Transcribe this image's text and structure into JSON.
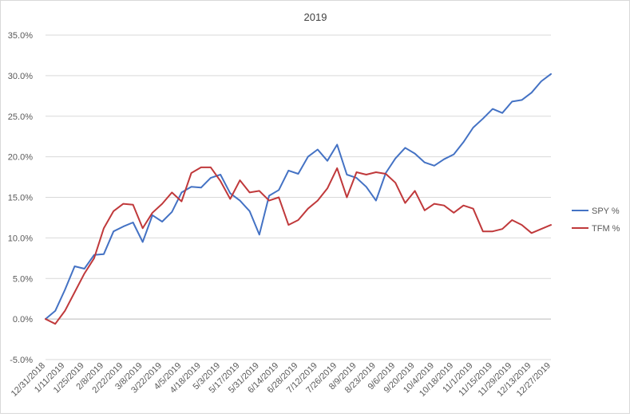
{
  "chart_data": {
    "type": "line",
    "title": "2019",
    "xlabel": "",
    "ylabel": "",
    "ylim": [
      -5.0,
      35.0
    ],
    "yticks": [
      "-5.0%",
      "0.0%",
      "5.0%",
      "10.0%",
      "15.0%",
      "20.0%",
      "25.0%",
      "30.0%",
      "35.0%"
    ],
    "ytick_values": [
      -5,
      0,
      5,
      10,
      15,
      20,
      25,
      30,
      35
    ],
    "grid": true,
    "legend_position": "right",
    "x": [
      "12/31/2018",
      "1/4/2019",
      "1/11/2019",
      "1/18/2019",
      "1/25/2019",
      "2/1/2019",
      "2/8/2019",
      "2/15/2019",
      "2/22/2019",
      "3/1/2019",
      "3/8/2019",
      "3/15/2019",
      "3/22/2019",
      "3/29/2019",
      "4/5/2019",
      "4/12/2019",
      "4/18/2019",
      "4/26/2019",
      "5/3/2019",
      "5/10/2019",
      "5/17/2019",
      "5/24/2019",
      "5/31/2019",
      "6/7/2019",
      "6/14/2019",
      "6/21/2019",
      "6/28/2019",
      "7/5/2019",
      "7/12/2019",
      "7/19/2019",
      "7/26/2019",
      "8/2/2019",
      "8/9/2019",
      "8/16/2019",
      "8/23/2019",
      "8/30/2019",
      "9/6/2019",
      "9/13/2019",
      "9/20/2019",
      "9/27/2019",
      "10/4/2019",
      "10/11/2019",
      "10/18/2019",
      "10/25/2019",
      "11/1/2019",
      "11/8/2019",
      "11/15/2019",
      "11/22/2019",
      "11/29/2019",
      "12/6/2019",
      "12/13/2019",
      "12/20/2019",
      "12/27/2019"
    ],
    "xtick_labels": [
      "12/31/2018",
      "1/11/2019",
      "1/25/2019",
      "2/8/2019",
      "2/22/2019",
      "3/8/2019",
      "3/22/2019",
      "4/5/2019",
      "4/18/2019",
      "5/3/2019",
      "5/17/2019",
      "5/31/2019",
      "6/14/2019",
      "6/28/2019",
      "7/12/2019",
      "7/26/2019",
      "8/9/2019",
      "8/23/2019",
      "9/6/2019",
      "9/20/2019",
      "10/4/2019",
      "10/18/2019",
      "11/1/2019",
      "11/15/2019",
      "11/29/2019",
      "12/13/2019",
      "12/27/2019"
    ],
    "series": [
      {
        "name": "SPY %",
        "color": "#4472c4",
        "values": [
          0.0,
          1.0,
          3.6,
          6.5,
          6.2,
          7.9,
          8.0,
          10.8,
          11.4,
          11.9,
          9.5,
          12.8,
          12.0,
          13.2,
          15.6,
          16.3,
          16.2,
          17.4,
          17.8,
          15.5,
          14.6,
          13.3,
          10.4,
          15.2,
          15.9,
          18.3,
          17.9,
          20.0,
          20.9,
          19.5,
          21.5,
          17.8,
          17.4,
          16.3,
          14.6,
          18.0,
          19.8,
          21.1,
          20.4,
          19.3,
          18.9,
          19.7,
          20.3,
          21.8,
          23.6,
          24.7,
          25.9,
          25.4,
          26.8,
          27.0,
          27.9,
          29.3,
          30.2
        ]
      },
      {
        "name": "TFM %",
        "color": "#c0393b",
        "values": [
          0.0,
          -0.6,
          1.0,
          3.3,
          5.6,
          7.5,
          11.2,
          13.3,
          14.2,
          14.1,
          11.2,
          13.1,
          14.2,
          15.6,
          14.5,
          18.0,
          18.7,
          18.7,
          17.0,
          14.8,
          17.1,
          15.6,
          15.8,
          14.6,
          15.0,
          11.6,
          12.2,
          13.6,
          14.6,
          16.1,
          18.6,
          15.0,
          18.1,
          17.8,
          18.1,
          17.9,
          16.8,
          14.3,
          15.8,
          13.4,
          14.2,
          14.0,
          13.1,
          14.0,
          13.6,
          10.8,
          10.8,
          11.1,
          12.2,
          11.6,
          10.6,
          11.1,
          11.6
        ]
      }
    ]
  }
}
